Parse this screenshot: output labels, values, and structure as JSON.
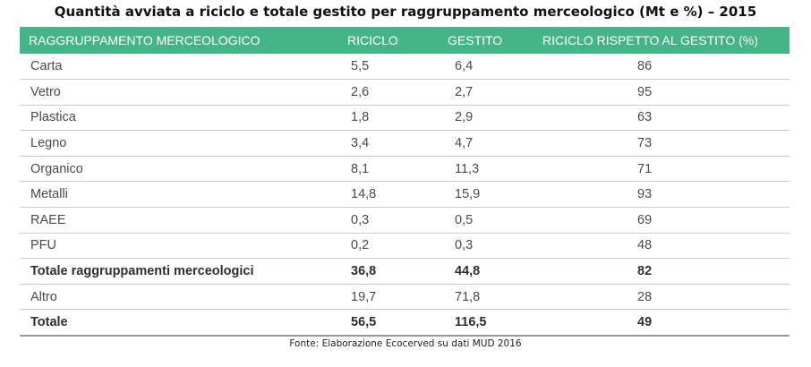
{
  "title": "Quantità avviata a riciclo e totale gestito per raggruppamento merceologico (Mt e %) – 2015",
  "header_color": "#46b489",
  "columns": [
    "RAGGRUPPAMENTO MERCEOLOGICO",
    "RICICLO",
    "GESTITO",
    "RICICLO RISPETTO AL GESTITO (%)"
  ],
  "rows": [
    {
      "name": "Carta",
      "riciclo": "5,5",
      "gestito": "6,4",
      "percent": "86"
    },
    {
      "name": "Vetro",
      "riciclo": "2,6",
      "gestito": "2,7",
      "percent": "95"
    },
    {
      "name": "Plastica",
      "riciclo": "1,8",
      "gestito": "2,9",
      "percent": "63"
    },
    {
      "name": "Legno",
      "riciclo": "3,4",
      "gestito": "4,7",
      "percent": "73"
    },
    {
      "name": "Organico",
      "riciclo": "8,1",
      "gestito": "11,3",
      "percent": "71"
    },
    {
      "name": "Metalli",
      "riciclo": "14,8",
      "gestito": "15,9",
      "percent": "93"
    },
    {
      "name": "RAEE",
      "riciclo": "0,3",
      "gestito": "0,5",
      "percent": "69"
    },
    {
      "name": "PFU",
      "riciclo": "0,2",
      "gestito": "0,3",
      "percent": "48"
    },
    {
      "name": "Totale raggruppamenti merceologici",
      "riciclo": "36,8",
      "gestito": "44,8",
      "percent": "82"
    },
    {
      "name": "Altro",
      "riciclo": "19,7",
      "gestito": "71,8",
      "percent": "28"
    },
    {
      "name": "Totale",
      "riciclo": "56,5",
      "gestito": "116,5",
      "percent": "49"
    }
  ],
  "source": "Fonte: Elaborazione Ecocerved su dati MUD 2016"
}
